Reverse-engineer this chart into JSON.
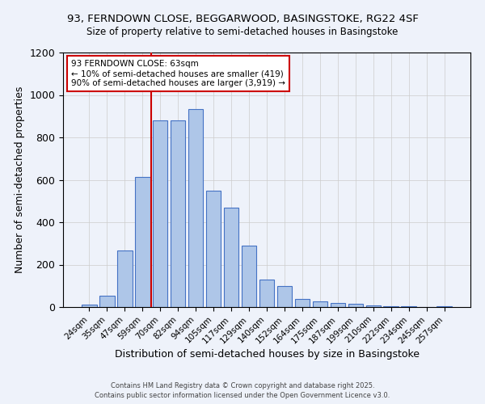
{
  "title1": "93, FERNDOWN CLOSE, BEGGARWOOD, BASINGSTOKE, RG22 4SF",
  "title2": "Size of property relative to semi-detached houses in Basingstoke",
  "xlabel": "Distribution of semi-detached houses by size in Basingstoke",
  "ylabel": "Number of semi-detached properties",
  "categories": [
    "24sqm",
    "35sqm",
    "47sqm",
    "59sqm",
    "70sqm",
    "82sqm",
    "94sqm",
    "105sqm",
    "117sqm",
    "129sqm",
    "140sqm",
    "152sqm",
    "164sqm",
    "175sqm",
    "187sqm",
    "199sqm",
    "210sqm",
    "222sqm",
    "234sqm",
    "245sqm",
    "257sqm"
  ],
  "values": [
    10,
    55,
    265,
    615,
    880,
    880,
    935,
    550,
    470,
    290,
    130,
    100,
    38,
    25,
    18,
    15,
    8,
    4,
    2,
    1,
    5
  ],
  "bar_color": "#aec6e8",
  "bar_edge_color": "#4472c4",
  "background_color": "#eef2fa",
  "grid_color": "#cccccc",
  "vline_color": "#cc0000",
  "annotation_text": "93 FERNDOWN CLOSE: 63sqm\n← 10% of semi-detached houses are smaller (419)\n90% of semi-detached houses are larger (3,919) →",
  "annotation_box_color": "#ffffff",
  "annotation_box_edge": "#cc0000",
  "ylim": [
    0,
    1200
  ],
  "yticks": [
    0,
    200,
    400,
    600,
    800,
    1000,
    1200
  ],
  "footer1": "Contains HM Land Registry data © Crown copyright and database right 2025.",
  "footer2": "Contains public sector information licensed under the Open Government Licence v3.0."
}
